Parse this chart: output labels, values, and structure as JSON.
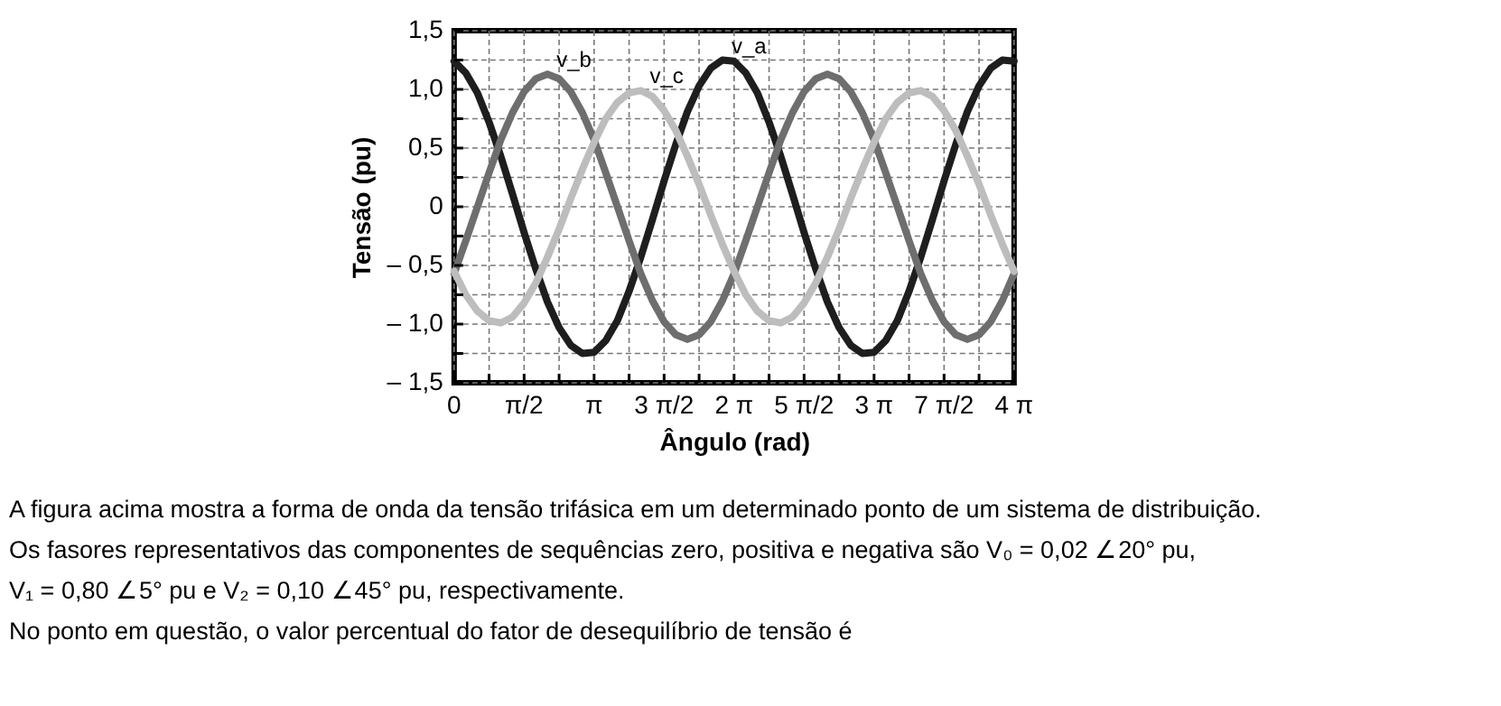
{
  "chart_data": {
    "type": "line",
    "xlabel": "Ângulo (rad)",
    "ylabel": "Tensão (pu)",
    "x": [
      0,
      0.2618,
      0.5236,
      0.7854,
      1.0472,
      1.309,
      1.5708,
      1.8326,
      2.0944,
      2.3562,
      2.618,
      2.8798,
      3.1416,
      3.4034,
      3.6652,
      3.927,
      4.1888,
      4.4506,
      4.7124,
      4.9742,
      5.236,
      5.4978,
      5.7596,
      6.0214,
      6.2832,
      6.545,
      6.8068,
      7.0686,
      7.3304,
      7.5922,
      7.854,
      8.1158,
      8.3776,
      8.6394,
      8.9012,
      9.163,
      9.4248,
      9.6866,
      9.9484,
      10.2102,
      10.472,
      10.7338,
      10.9956,
      11.2574,
      11.5192,
      11.781,
      12.0428,
      12.3046,
      12.5664
    ],
    "series": [
      {
        "name": "v_a",
        "color": "#1e1e1e",
        "values": [
          1.24,
          1.14,
          0.97,
          0.72,
          0.43,
          0.11,
          -0.22,
          -0.53,
          -0.81,
          -1.03,
          -1.18,
          -1.25,
          -1.24,
          -1.14,
          -0.97,
          -0.72,
          -0.43,
          -0.11,
          0.22,
          0.53,
          0.81,
          1.03,
          1.18,
          1.25,
          1.24,
          1.14,
          0.97,
          0.72,
          0.43,
          0.11,
          -0.22,
          -0.53,
          -0.81,
          -1.03,
          -1.18,
          -1.25,
          -1.24,
          -1.14,
          -0.97,
          -0.72,
          -0.43,
          -0.11,
          0.22,
          0.53,
          0.81,
          1.03,
          1.18,
          1.25,
          1.24
        ]
      },
      {
        "name": "v_b",
        "color": "#6e6e6e",
        "values": [
          -0.57,
          -0.29,
          0,
          0.29,
          0.57,
          0.8,
          0.98,
          1.09,
          1.13,
          1.09,
          0.98,
          0.8,
          0.57,
          0.29,
          0,
          -0.29,
          -0.57,
          -0.8,
          -0.98,
          -1.09,
          -1.13,
          -1.09,
          -0.98,
          -0.8,
          -0.57,
          -0.29,
          0,
          0.29,
          0.57,
          0.8,
          0.98,
          1.09,
          1.13,
          1.09,
          0.98,
          0.8,
          0.57,
          0.29,
          0,
          -0.29,
          -0.57,
          -0.8,
          -0.98,
          -1.09,
          -1.13,
          -1.09,
          -0.98,
          -0.8,
          -0.57
        ]
      },
      {
        "name": "v_c",
        "color": "#bdbdbd",
        "values": [
          -0.55,
          -0.75,
          -0.89,
          -0.97,
          -0.99,
          -0.94,
          -0.82,
          -0.65,
          -0.43,
          -0.19,
          0.07,
          0.32,
          0.55,
          0.75,
          0.89,
          0.97,
          0.99,
          0.94,
          0.82,
          0.65,
          0.43,
          0.19,
          -0.07,
          -0.32,
          -0.55,
          -0.75,
          -0.89,
          -0.97,
          -0.99,
          -0.94,
          -0.82,
          -0.65,
          -0.43,
          -0.19,
          0.07,
          0.32,
          0.55,
          0.75,
          0.89,
          0.97,
          0.99,
          0.94,
          0.82,
          0.65,
          0.43,
          0.19,
          -0.07,
          -0.32,
          -0.55
        ]
      }
    ],
    "xlim": [
      0,
      12.5664
    ],
    "xticks": [
      0,
      {
        "value": 0.7854,
        "label": null
      },
      {
        "value": 1.5708,
        "label": "π/2"
      },
      {
        "value": 2.3562,
        "label": null
      },
      {
        "value": 3.1416,
        "label": "π"
      },
      {
        "value": 3.927,
        "label": null
      },
      {
        "value": 4.7124,
        "label": "3 π/2"
      },
      {
        "value": 5.4978,
        "label": null
      },
      {
        "value": 6.2832,
        "label": "2 π"
      },
      {
        "value": 7.0686,
        "label": null
      },
      {
        "value": 7.854,
        "label": "5 π/2"
      },
      {
        "value": 8.6394,
        "label": null
      },
      {
        "value": 9.4248,
        "label": "3 π"
      },
      {
        "value": 10.2102,
        "label": null
      },
      {
        "value": 10.9956,
        "label": "7 π/2"
      },
      {
        "value": 11.781,
        "label": null
      },
      {
        "value": 12.5664,
        "label": "4 π"
      }
    ],
    "ylim": [
      -1.5,
      1.5
    ],
    "yticks": [
      {
        "value": -1.5,
        "label": "– 1,5"
      },
      {
        "value": -1.25,
        "label": null
      },
      {
        "value": -1.0,
        "label": "– 1,0"
      },
      {
        "value": -0.75,
        "label": null
      },
      {
        "value": -0.5,
        "label": "– 0,5"
      },
      {
        "value": -0.25,
        "label": null
      },
      0,
      {
        "value": 0.25,
        "label": null
      },
      {
        "value": 0.5,
        "label": "0,5"
      },
      {
        "value": 0.75,
        "label": null
      },
      {
        "value": 1.0,
        "label": "1,0"
      },
      {
        "value": 1.25,
        "label": null
      },
      {
        "value": 1.5,
        "label": "1,5"
      }
    ],
    "grid": true,
    "legend": false,
    "marker": "none",
    "line_style": "solid",
    "annotations": [
      "A figura acima mostra a forma de onda da tensão trifásica em um determinado ponto de um sistema de distribuição.",
      "Os fasores representativos das componentes de sequências zero, positiva e negativa são  V₀ = 0,02 ∠20° pu,",
      "V₁ = 0,80 ∠5° pu e V₂ = 0,10 ∠45° pu, respectivamente.",
      "No ponto em questão, o valor percentual do fator de desequilíbrio de tensão é"
    ]
  }
}
